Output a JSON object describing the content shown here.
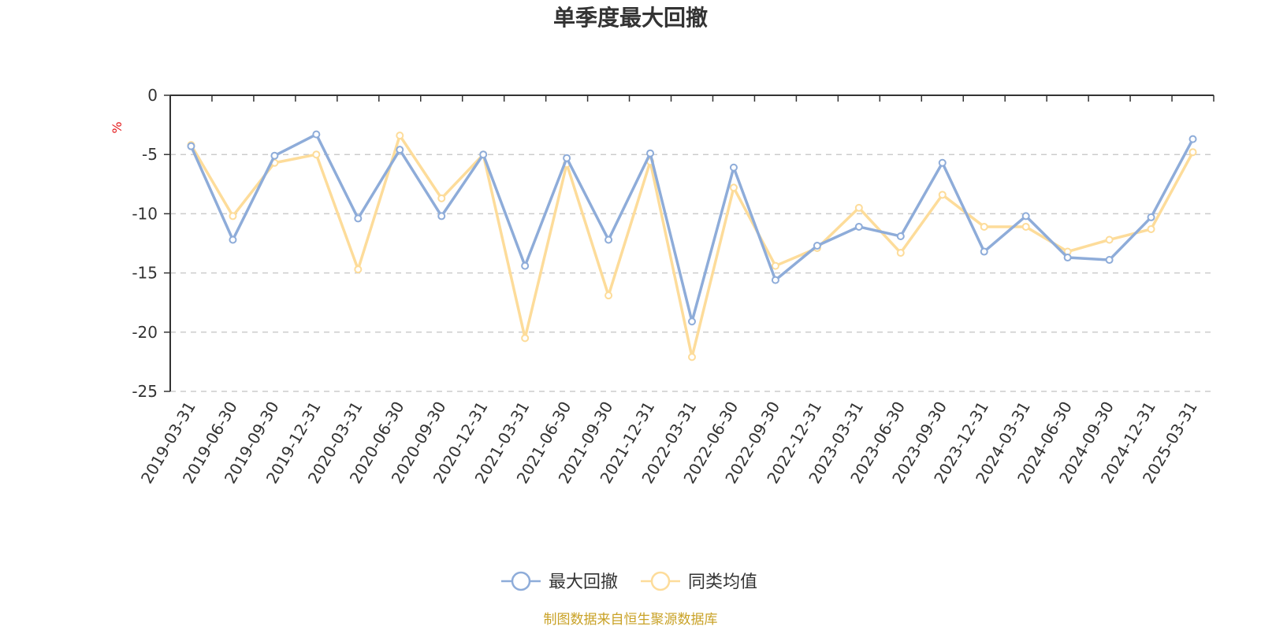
{
  "chart_data": {
    "type": "line",
    "title": "单季度最大回撤",
    "y_unit": "%",
    "ylim": [
      -25,
      0
    ],
    "yticks": [
      0,
      -5,
      -10,
      -15,
      -20,
      -25
    ],
    "grid": true,
    "legend_position": "bottom-center",
    "categories": [
      "2019-03-31",
      "2019-06-30",
      "2019-09-30",
      "2019-12-31",
      "2020-03-31",
      "2020-06-30",
      "2020-09-30",
      "2020-12-31",
      "2021-03-31",
      "2021-06-30",
      "2021-09-30",
      "2021-12-31",
      "2022-03-31",
      "2022-06-30",
      "2022-09-30",
      "2022-12-31",
      "2023-03-31",
      "2023-06-30",
      "2023-09-30",
      "2023-12-31",
      "2024-03-31",
      "2024-06-30",
      "2024-09-30",
      "2024-12-31",
      "2025-03-31"
    ],
    "series": [
      {
        "name": "最大回撤",
        "color": "#8eacd9",
        "values": [
          -4.3,
          -12.2,
          -5.1,
          -3.3,
          -10.4,
          -4.6,
          -10.2,
          -5.0,
          -14.4,
          -5.3,
          -12.2,
          -4.9,
          -19.1,
          -6.1,
          -15.6,
          -12.7,
          -11.1,
          -11.9,
          -5.7,
          -13.2,
          -10.2,
          -13.7,
          -13.9,
          -10.3,
          -3.7
        ]
      },
      {
        "name": "同类均值",
        "color": "#fddc9a",
        "values": [
          -4.2,
          -10.2,
          -5.7,
          -5.0,
          -14.7,
          -3.4,
          -8.7,
          -5.0,
          -20.5,
          -5.8,
          -16.9,
          -5.6,
          -22.1,
          -7.8,
          -14.4,
          -12.9,
          -9.5,
          -13.3,
          -8.4,
          -11.1,
          -11.1,
          -13.2,
          -12.2,
          -11.3,
          -4.8
        ]
      }
    ]
  },
  "source_note": "制图数据来自恒生聚源数据库"
}
